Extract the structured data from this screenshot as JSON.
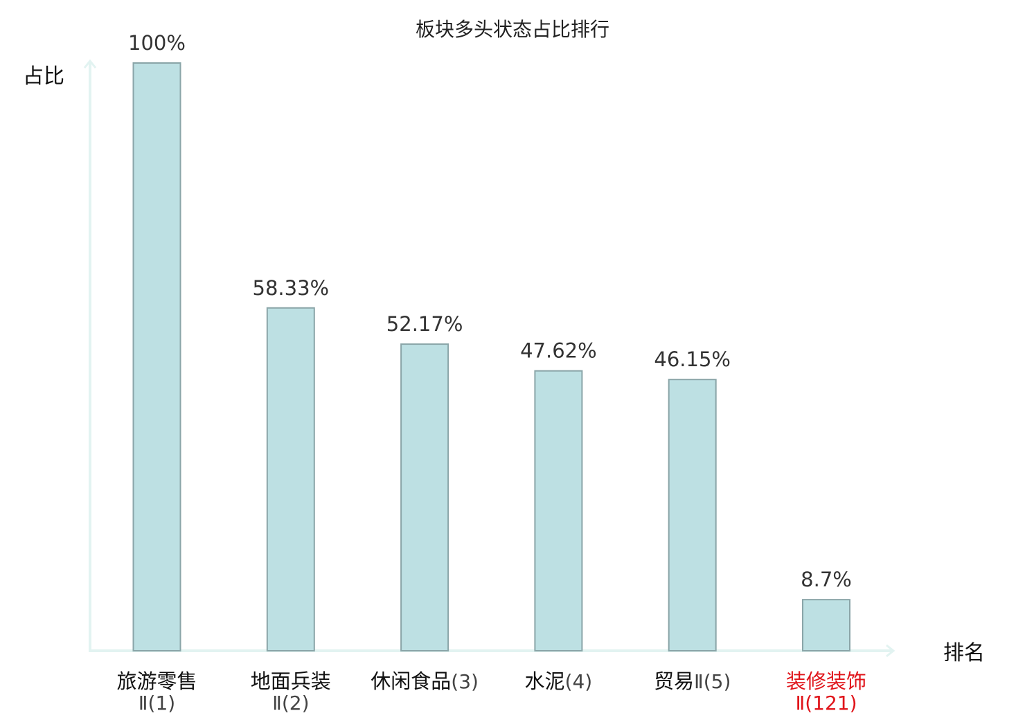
{
  "chart_data": {
    "type": "bar",
    "title": "板块多头状态占比排行",
    "ylabel": "占比",
    "xlabel": "排名",
    "ylim": [
      0,
      100
    ],
    "unit": "%",
    "grid": false,
    "legend": "none",
    "categories": [
      {
        "name": "旅游零售",
        "rank": "Ⅱ(1)",
        "highlight": false
      },
      {
        "name": "地面兵装",
        "rank": "Ⅱ(2)",
        "highlight": false
      },
      {
        "name": "休闲食品",
        "rank": "(3)",
        "highlight": false,
        "inline": true
      },
      {
        "name": "水泥",
        "rank": "(4)",
        "highlight": false,
        "inline": true
      },
      {
        "name": "贸易",
        "rank": "Ⅱ(5)",
        "highlight": false,
        "inline": true
      },
      {
        "name": "装修装饰",
        "rank": "Ⅱ(121)",
        "highlight": true
      }
    ],
    "values": [
      100,
      58.33,
      52.17,
      47.62,
      46.15,
      8.7
    ],
    "value_labels": [
      "100%",
      "58.33%",
      "52.17%",
      "47.62%",
      "46.15%",
      "8.7%"
    ]
  },
  "colors": {
    "bar_fill": "#bde0e3",
    "bar_stroke": "#8aa5a8",
    "axis": "#e2f3f1",
    "text": "#111111",
    "rank_text": "#444444",
    "highlight": "#e0141a"
  }
}
